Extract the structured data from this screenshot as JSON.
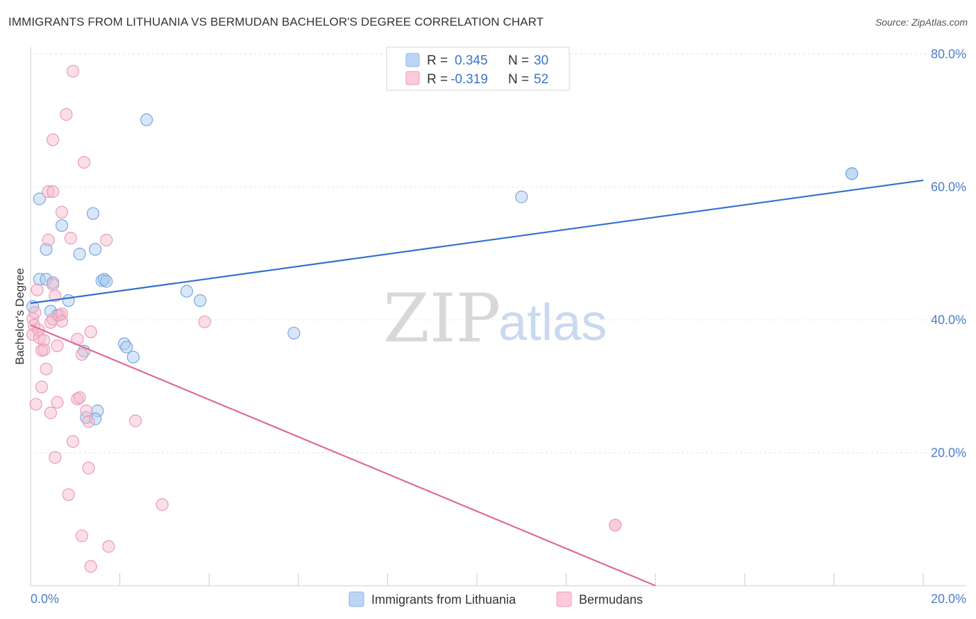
{
  "title": "IMMIGRANTS FROM LITHUANIA VS BERMUDAN BACHELOR'S DEGREE CORRELATION CHART",
  "source": "Source: ZipAtlas.com",
  "watermark": {
    "zip": "ZIP",
    "atlas": "atlas"
  },
  "legend": {
    "series1": {
      "r_label": "R = ",
      "r_value": "0.345",
      "n_label": "N = ",
      "n_value": "30"
    },
    "series2": {
      "r_label": "R = ",
      "r_value": "-0.319",
      "n_label": "N = ",
      "n_value": "52"
    }
  },
  "bottom_legend": {
    "series1": "Immigrants from Lithuania",
    "series2": "Bermudans"
  },
  "chart_data": {
    "type": "scatter",
    "title": "IMMIGRANTS FROM LITHUANIA VS BERMUDAN BACHELOR'S DEGREE CORRELATION CHART",
    "xlabel": "",
    "ylabel": "Bachelor's Degree",
    "xlim": [
      0,
      20
    ],
    "ylim": [
      0,
      80
    ],
    "x_tick_labels": [
      "0.0%",
      "20.0%"
    ],
    "y_ticks": [
      20,
      40,
      60,
      80
    ],
    "y_tick_labels": [
      "20.0%",
      "40.0%",
      "60.0%",
      "80.0%"
    ],
    "colors": {
      "series1": "#a9c9f0",
      "series1_line": "#2f6fd0",
      "series2": "#f5b8cd",
      "series2_line": "#e0689a"
    },
    "series": [
      {
        "name": "Immigrants from Lithuania",
        "r": 0.345,
        "n": 30,
        "trend": [
          [
            0,
            42.5
          ],
          [
            20,
            61.0
          ]
        ],
        "points": [
          [
            0.05,
            42.0
          ],
          [
            0.2,
            46.1
          ],
          [
            0.2,
            58.2
          ],
          [
            0.35,
            46.1
          ],
          [
            0.35,
            50.6
          ],
          [
            0.45,
            41.3
          ],
          [
            0.5,
            45.6
          ],
          [
            0.6,
            40.7
          ],
          [
            0.7,
            54.2
          ],
          [
            0.85,
            42.9
          ],
          [
            1.1,
            49.9
          ],
          [
            1.2,
            35.3
          ],
          [
            1.25,
            25.3
          ],
          [
            1.4,
            56.0
          ],
          [
            1.45,
            50.6
          ],
          [
            1.5,
            26.3
          ],
          [
            1.45,
            25.1
          ],
          [
            1.6,
            45.9
          ],
          [
            1.65,
            46.1
          ],
          [
            1.7,
            45.8
          ],
          [
            2.1,
            36.4
          ],
          [
            2.15,
            35.9
          ],
          [
            2.3,
            34.4
          ],
          [
            2.6,
            70.1
          ],
          [
            3.5,
            44.3
          ],
          [
            3.8,
            42.9
          ],
          [
            5.9,
            38.0
          ],
          [
            11.0,
            58.5
          ],
          [
            18.4,
            62.0
          ],
          [
            18.4,
            62.0
          ]
        ]
      },
      {
        "name": "Bermudans",
        "r": -0.319,
        "n": 52,
        "trend": [
          [
            0,
            39.2
          ],
          [
            14.0,
            0.0
          ]
        ],
        "points": [
          [
            0.05,
            40.2
          ],
          [
            0.05,
            37.8
          ],
          [
            0.08,
            39.2
          ],
          [
            0.1,
            41.1
          ],
          [
            0.12,
            27.3
          ],
          [
            0.15,
            44.5
          ],
          [
            0.18,
            38.5
          ],
          [
            0.2,
            37.3
          ],
          [
            0.25,
            35.4
          ],
          [
            0.25,
            29.9
          ],
          [
            0.3,
            36.9
          ],
          [
            0.3,
            35.5
          ],
          [
            0.35,
            32.6
          ],
          [
            0.4,
            52.0
          ],
          [
            0.4,
            59.3
          ],
          [
            0.45,
            26.0
          ],
          [
            0.45,
            39.6
          ],
          [
            0.5,
            59.3
          ],
          [
            0.5,
            40.1
          ],
          [
            0.5,
            45.3
          ],
          [
            0.55,
            43.6
          ],
          [
            0.55,
            19.3
          ],
          [
            0.5,
            67.1
          ],
          [
            0.6,
            27.6
          ],
          [
            0.6,
            36.1
          ],
          [
            0.65,
            40.7
          ],
          [
            0.7,
            56.2
          ],
          [
            0.7,
            40.9
          ],
          [
            0.7,
            39.8
          ],
          [
            0.8,
            70.9
          ],
          [
            0.85,
            13.7
          ],
          [
            0.9,
            52.3
          ],
          [
            0.95,
            21.7
          ],
          [
            0.95,
            77.4
          ],
          [
            1.05,
            28.1
          ],
          [
            1.05,
            37.1
          ],
          [
            1.1,
            28.3
          ],
          [
            1.15,
            34.8
          ],
          [
            1.15,
            7.5
          ],
          [
            1.2,
            63.7
          ],
          [
            1.25,
            26.3
          ],
          [
            1.3,
            17.7
          ],
          [
            1.3,
            24.7
          ],
          [
            1.35,
            38.2
          ],
          [
            1.35,
            2.9
          ],
          [
            1.7,
            52.0
          ],
          [
            1.75,
            5.9
          ],
          [
            2.35,
            24.8
          ],
          [
            2.95,
            12.2
          ],
          [
            3.9,
            39.7
          ],
          [
            13.1,
            9.1
          ],
          [
            13.1,
            9.1
          ]
        ]
      }
    ]
  }
}
